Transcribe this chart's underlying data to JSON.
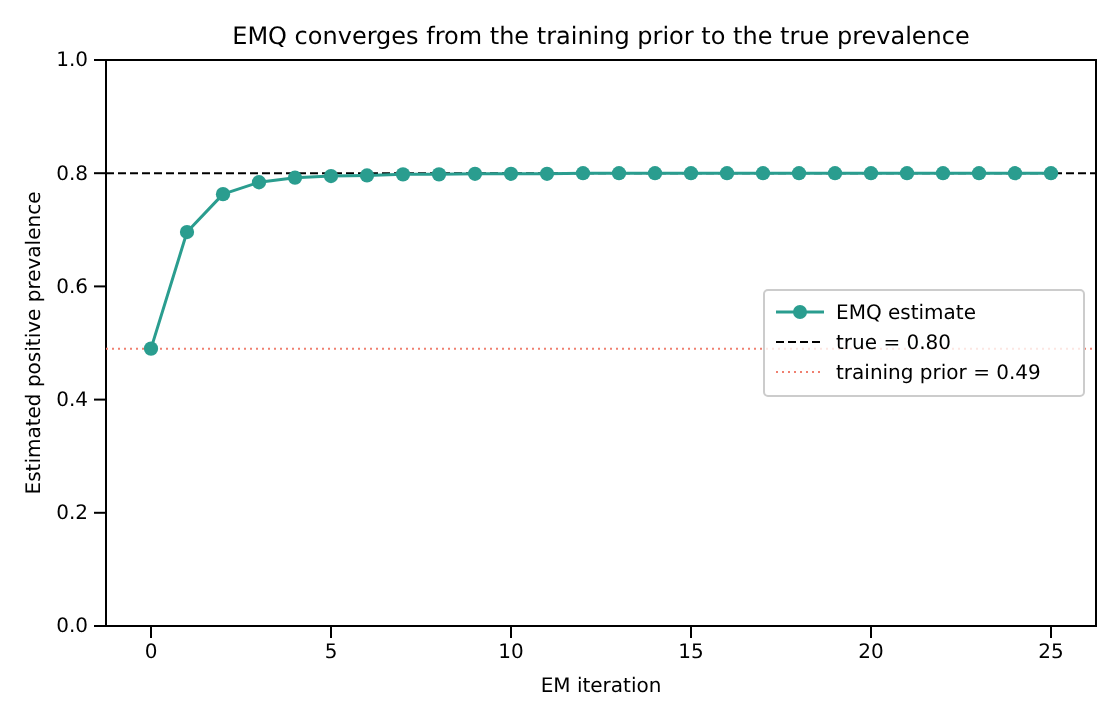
{
  "chart_data": {
    "type": "line",
    "title": "EMQ converges from the training prior to the true prevalence",
    "xlabel": "EM iteration",
    "ylabel": "Estimated positive prevalence",
    "x": [
      0,
      1,
      2,
      3,
      4,
      5,
      6,
      7,
      8,
      9,
      10,
      11,
      12,
      13,
      14,
      15,
      16,
      17,
      18,
      19,
      20,
      21,
      22,
      23,
      24,
      25
    ],
    "series": [
      {
        "name": "EMQ estimate",
        "color": "#2a9d8f",
        "values": [
          0.49,
          0.696,
          0.763,
          0.784,
          0.792,
          0.795,
          0.796,
          0.798,
          0.798,
          0.799,
          0.799,
          0.799,
          0.8,
          0.8,
          0.8,
          0.8,
          0.8,
          0.8,
          0.8,
          0.8,
          0.8,
          0.8,
          0.8,
          0.8,
          0.8,
          0.8
        ]
      }
    ],
    "ref_lines": [
      {
        "axis": "y",
        "value": 0.8,
        "label": "true = 0.80",
        "color": "#000000",
        "line_style": "dashed"
      },
      {
        "axis": "y",
        "value": 0.49,
        "label": "training prior = 0.49",
        "color": "#f08070",
        "line_style": "dotted"
      }
    ],
    "xlim": [
      -1.25,
      26.25
    ],
    "ylim": [
      0,
      1
    ],
    "xticks": [
      0,
      5,
      10,
      15,
      20,
      25
    ],
    "yticks": [
      {
        "value": 0,
        "label": "0.0"
      },
      {
        "value": 0.2,
        "label": "0.2"
      },
      {
        "value": 0.4,
        "label": "0.4"
      },
      {
        "value": 0.6,
        "label": "0.6"
      },
      {
        "value": 0.8,
        "label": "0.8"
      },
      {
        "value": 1,
        "label": "1.0"
      }
    ],
    "marker": "circle",
    "line_style": "solid",
    "grid": false,
    "legend": "center right"
  }
}
